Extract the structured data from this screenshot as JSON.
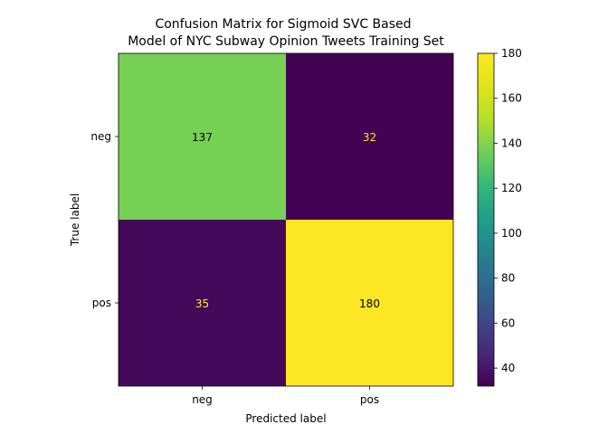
{
  "chart_data": {
    "type": "heatmap",
    "title_line1": "Confusion Matrix for Sigmoid SVC Based",
    "title_line2": "Model of NYC Subway Opinion Tweets Training Set",
    "xlabel": "Predicted label",
    "ylabel": "True label",
    "x_categories": [
      "neg",
      "pos"
    ],
    "y_categories": [
      "neg",
      "pos"
    ],
    "values": [
      [
        137,
        32
      ],
      [
        35,
        180
      ]
    ],
    "colormap": "viridis",
    "color_range": [
      32,
      180
    ],
    "colorbar_ticks": [
      40,
      60,
      80,
      100,
      120,
      140,
      160,
      180
    ],
    "colorbar_tick_labels": [
      "40",
      "60",
      "80",
      "100",
      "120",
      "140",
      "160",
      "180"
    ],
    "text_color_dark": "#000000",
    "text_color_light": "#fde725"
  }
}
